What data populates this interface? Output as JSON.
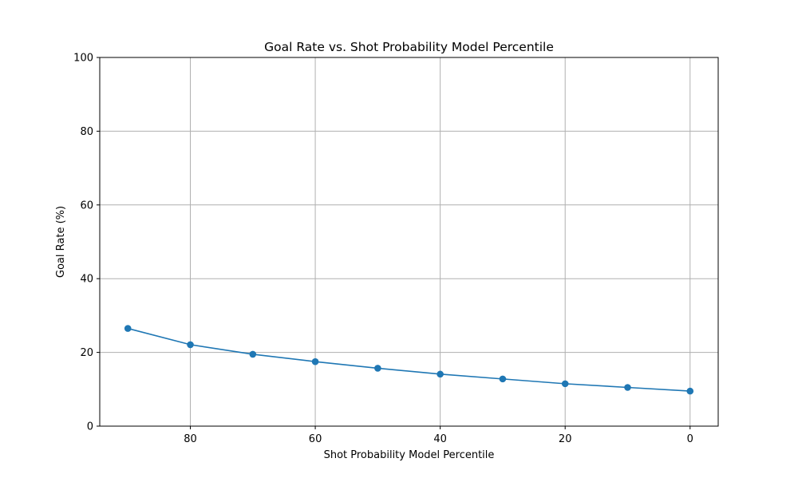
{
  "chart_data": {
    "type": "line",
    "title": "Goal Rate vs. Shot Probability Model Percentile",
    "xlabel": "Shot Probability Model Percentile",
    "ylabel": "Goal Rate (%)",
    "x_inverted": true,
    "xlim": [
      94.5,
      -4.5
    ],
    "ylim": [
      0,
      100
    ],
    "x_ticks": [
      80,
      60,
      40,
      20,
      0
    ],
    "y_ticks": [
      0,
      20,
      40,
      60,
      80,
      100
    ],
    "grid": true,
    "line_color": "#1f77b4",
    "marker": "circle",
    "x": [
      90,
      80,
      70,
      60,
      50,
      40,
      30,
      20,
      10,
      0
    ],
    "y": [
      26.5,
      22.1,
      19.5,
      17.5,
      15.7,
      14.1,
      12.8,
      11.5,
      10.5,
      9.5
    ]
  }
}
